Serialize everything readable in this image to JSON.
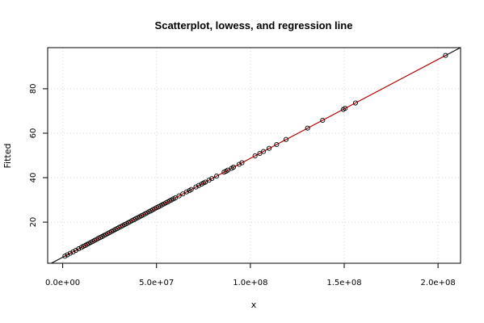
{
  "chart_data": {
    "type": "scatter",
    "title": "Scatterplot, lowess, and regression line",
    "xlabel": "x",
    "ylabel": "Fitted",
    "xlim": [
      -8000000,
      212000000
    ],
    "ylim": [
      1.5,
      98.5
    ],
    "x_ticks": [
      {
        "value": 0,
        "label": "0.0e+00"
      },
      {
        "value": 50000000,
        "label": "5.0e+07"
      },
      {
        "value": 100000000,
        "label": "1.0e+08"
      },
      {
        "value": 150000000,
        "label": "1.5e+08"
      },
      {
        "value": 200000000,
        "label": "2.0e+08"
      }
    ],
    "y_ticks": [
      {
        "value": 20,
        "label": "20"
      },
      {
        "value": 40,
        "label": "40"
      },
      {
        "value": 60,
        "label": "60"
      },
      {
        "value": 80,
        "label": "80"
      }
    ],
    "grid": true,
    "regression_line": {
      "intercept": 4.2,
      "slope": 4.45e-07
    },
    "lowess_line": [
      [
        1000000,
        4.6
      ],
      [
        204000000,
        95.0
      ]
    ],
    "points": [
      [
        1200000,
        4.7
      ],
      [
        2500000,
        5.3
      ],
      [
        4000000,
        6.0
      ],
      [
        5500000,
        6.6
      ],
      [
        7000000,
        7.3
      ],
      [
        8500000,
        8.0
      ],
      [
        10000000,
        8.6
      ],
      [
        11000000,
        9.1
      ],
      [
        12000000,
        9.5
      ],
      [
        13000000,
        10.0
      ],
      [
        14000000,
        10.4
      ],
      [
        15000000,
        10.9
      ],
      [
        16000000,
        11.3
      ],
      [
        17000000,
        11.8
      ],
      [
        18000000,
        12.2
      ],
      [
        19000000,
        12.7
      ],
      [
        20000000,
        13.1
      ],
      [
        21000000,
        13.5
      ],
      [
        22000000,
        14.0
      ],
      [
        23000000,
        14.4
      ],
      [
        24000000,
        14.9
      ],
      [
        25000000,
        15.3
      ],
      [
        26000000,
        15.8
      ],
      [
        27000000,
        16.2
      ],
      [
        28000000,
        16.7
      ],
      [
        29000000,
        17.1
      ],
      [
        30000000,
        17.6
      ],
      [
        31000000,
        18.0
      ],
      [
        32000000,
        18.4
      ],
      [
        33000000,
        18.9
      ],
      [
        34000000,
        19.3
      ],
      [
        35000000,
        19.8
      ],
      [
        36000000,
        20.2
      ],
      [
        37000000,
        20.7
      ],
      [
        38000000,
        21.1
      ],
      [
        39000000,
        21.6
      ],
      [
        40000000,
        22.0
      ],
      [
        41000000,
        22.4
      ],
      [
        42000000,
        22.9
      ],
      [
        43000000,
        23.3
      ],
      [
        44000000,
        23.8
      ],
      [
        45000000,
        24.2
      ],
      [
        46000000,
        24.7
      ],
      [
        47000000,
        25.1
      ],
      [
        48000000,
        25.6
      ],
      [
        49000000,
        26.0
      ],
      [
        50000000,
        26.5
      ],
      [
        51000000,
        26.9
      ],
      [
        52000000,
        27.3
      ],
      [
        53000000,
        27.8
      ],
      [
        54000000,
        28.2
      ],
      [
        55000000,
        28.7
      ],
      [
        56000000,
        29.1
      ],
      [
        57000000,
        29.6
      ],
      [
        58000000,
        30.0
      ],
      [
        59000000,
        30.5
      ],
      [
        60000000,
        30.9
      ],
      [
        62000000,
        31.8
      ],
      [
        64000000,
        32.7
      ],
      [
        66000000,
        33.6
      ],
      [
        67500000,
        34.2
      ],
      [
        68500000,
        34.7
      ],
      [
        71000000,
        35.8
      ],
      [
        72500000,
        36.5
      ],
      [
        74000000,
        37.1
      ],
      [
        75000000,
        37.6
      ],
      [
        76000000,
        38.0
      ],
      [
        78000000,
        38.9
      ],
      [
        79500000,
        39.6
      ],
      [
        82000000,
        40.7
      ],
      [
        86000000,
        42.5
      ],
      [
        87000000,
        42.9
      ],
      [
        88000000,
        43.4
      ],
      [
        90000000,
        44.2
      ],
      [
        91000000,
        44.7
      ],
      [
        94000000,
        46.0
      ],
      [
        95500000,
        46.7
      ],
      [
        102500000,
        49.8
      ],
      [
        105000000,
        50.9
      ],
      [
        107000000,
        51.8
      ],
      [
        110000000,
        53.2
      ],
      [
        114000000,
        54.9
      ],
      [
        119000000,
        57.2
      ],
      [
        130500000,
        62.3
      ],
      [
        138500000,
        65.8
      ],
      [
        149500000,
        70.7
      ],
      [
        150500000,
        71.2
      ],
      [
        156000000,
        73.6
      ],
      [
        204000000,
        95.0
      ]
    ]
  }
}
